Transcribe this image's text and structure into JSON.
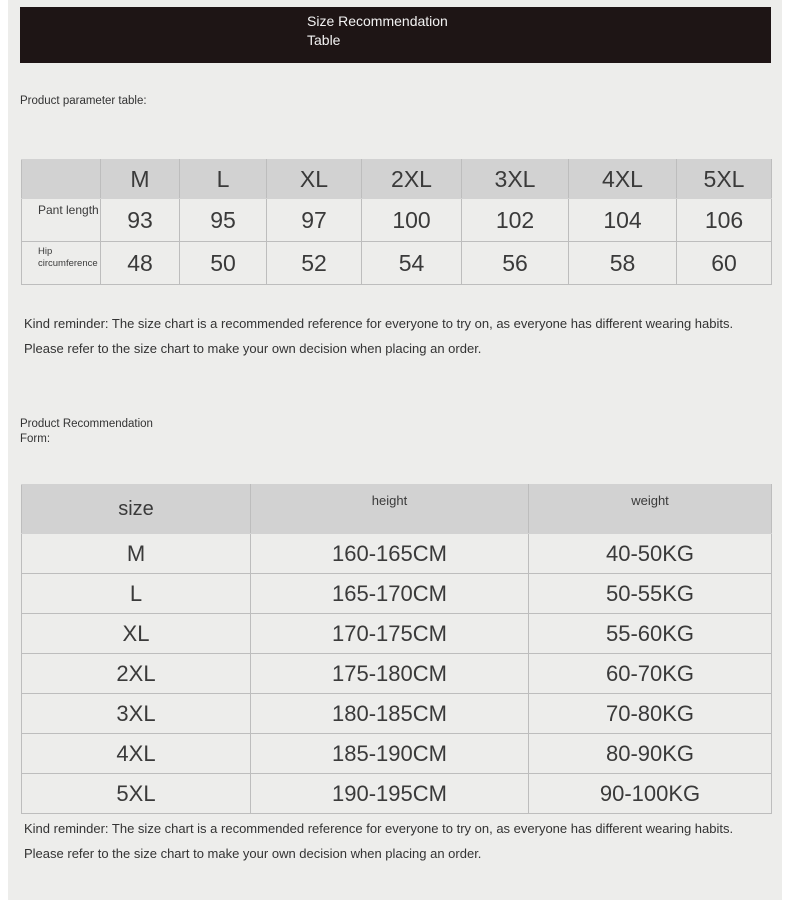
{
  "banner": {
    "title_line1": "Size Recommendation",
    "title_line2": "Table"
  },
  "param_label": "Product parameter table:",
  "param_table": {
    "sizes": [
      "M",
      "L",
      "XL",
      "2XL",
      "3XL",
      "4XL",
      "5XL"
    ],
    "rows": [
      {
        "label": "Pant length",
        "values": [
          "93",
          "95",
          "97",
          "100",
          "102",
          "104",
          "106"
        ]
      },
      {
        "label": "Hip circumference",
        "values": [
          "48",
          "50",
          "52",
          "54",
          "56",
          "58",
          "60"
        ]
      }
    ]
  },
  "reminder": "Kind reminder: The size chart is a recommended reference for everyone to try on, as everyone has different wearing habits. Please refer to the size chart to make your own decision when placing an order.",
  "rec_label": "Product Recommendation Form:",
  "rec_table": {
    "headers": [
      "size",
      "height",
      "weight"
    ],
    "rows": [
      [
        "M",
        "160-165CM",
        "40-50KG"
      ],
      [
        "L",
        "165-170CM",
        "50-55KG"
      ],
      [
        "XL",
        "170-175CM",
        "55-60KG"
      ],
      [
        "2XL",
        "175-180CM",
        "60-70KG"
      ],
      [
        "3XL",
        "180-185CM",
        "70-80KG"
      ],
      [
        "4XL",
        "185-190CM",
        "80-90KG"
      ],
      [
        "5XL",
        "190-195CM",
        "90-100KG"
      ]
    ]
  }
}
